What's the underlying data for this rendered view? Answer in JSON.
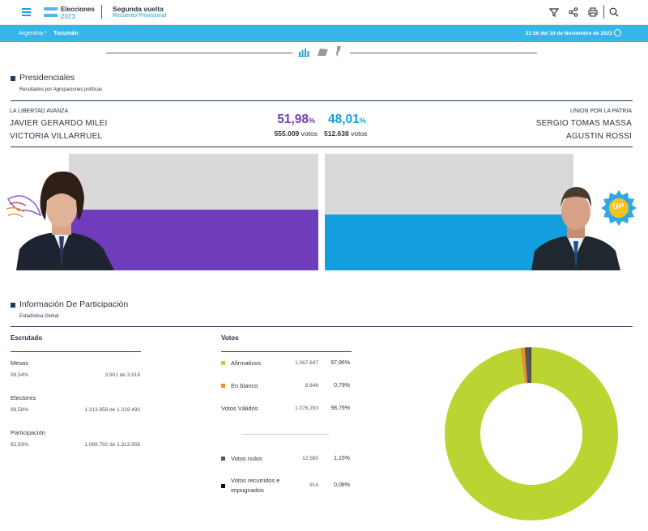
{
  "header": {
    "brand_line1": "Elecciones",
    "brand_line2": "2023",
    "election_title": "Segunda vuelta",
    "election_subtitle": "Recuento Provisional"
  },
  "breadcrumb": {
    "country": "Argentina",
    "separator": "•",
    "province": "Tucumán",
    "timestamp": "21:56 del 19 de Noviembre de 2023"
  },
  "presidenciales": {
    "title": "Presidenciales",
    "subtitle": "Resultados por Agrupaciones políticas",
    "left": {
      "party": "LA LIBERTAD AVANZA",
      "candidate1": "JAVIER GERARDO MILEI",
      "candidate2": "VICTORIA VILLARRUEL",
      "pct_num": "51,98",
      "pct_sign": "%",
      "votes_num": "555.009",
      "votes_label": "votos",
      "share": 51.98,
      "color": "#6f3dbb"
    },
    "right": {
      "party": "UNION POR LA PATRIA",
      "candidate1": "SERGIO TOMAS MASSA",
      "candidate2": "AGUSTIN ROSSI",
      "pct_num": "48,01",
      "pct_sign": "%",
      "votes_num": "512.638",
      "votes_label": "votos",
      "share": 48.01,
      "color": "#139fdf"
    },
    "badge_text": "UP"
  },
  "participacion": {
    "title": "Información De Participación",
    "subtitle": "Estadística Global",
    "escrutado": {
      "heading": "Escrutado",
      "rows": [
        {
          "label": "Mesas",
          "pct": "99,54%",
          "detail": "3.901 de 3.919"
        },
        {
          "label": "Electores",
          "pct": "99,58%",
          "detail": "1.313.958 de 1.319.493"
        },
        {
          "label": "Participación",
          "pct": "82,93%",
          "detail": "1.089.792 de 1.313.958"
        }
      ]
    },
    "votos": {
      "heading": "Votos",
      "afirmativos": {
        "label": "Afirmativos",
        "value": "1.067.647",
        "pct": "97,96%"
      },
      "en_blanco": {
        "label": "En blanco",
        "value": "8.646",
        "pct": "0,79%"
      },
      "validos": {
        "label": "Votos Válidos",
        "value": "1.076.293",
        "pct": "98,76%"
      },
      "nulos": {
        "label": "Votos nulos",
        "value": "12.585",
        "pct": "1,15%"
      },
      "recurridos_line1": "Votos recurridos e",
      "recurridos_line2": "impugnados",
      "recurridos": {
        "value": "914",
        "pct": "0,08%"
      }
    }
  },
  "chart_data": {
    "type": "pie",
    "donut": true,
    "categories": [
      "Afirmativos",
      "En blanco",
      "Votos nulos",
      "Votos recurridos e impugnados"
    ],
    "values": [
      97.96,
      0.79,
      1.15,
      0.08
    ],
    "colors": [
      "#bcd431",
      "#e8902a",
      "#555555",
      "#111111"
    ]
  }
}
